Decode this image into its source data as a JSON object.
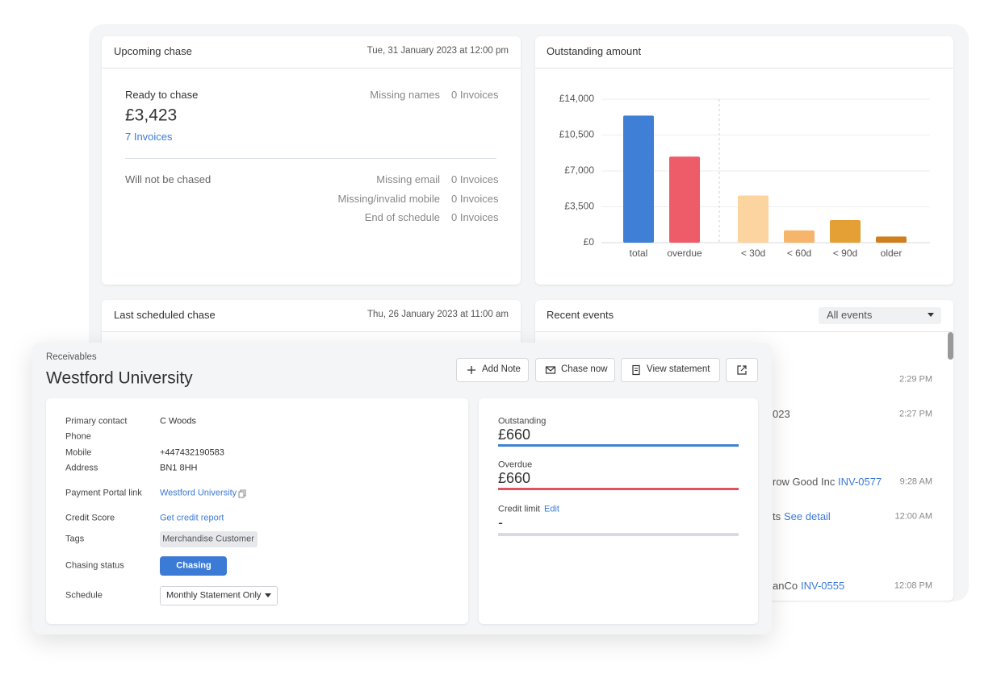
{
  "upcoming_chase": {
    "title": "Upcoming chase",
    "date": "Tue, 31 January 2023 at 12:00 pm",
    "ready_label": "Ready to chase",
    "ready_amount": "£3,423",
    "ready_invoices": "7 Invoices",
    "missing_names": {
      "label": "Missing names",
      "value": "0 Invoices"
    },
    "not_chased_label": "Will not be chased",
    "not_chased": [
      {
        "label": "Missing email",
        "value": "0 Invoices"
      },
      {
        "label": "Missing/invalid mobile",
        "value": "0 Invoices"
      },
      {
        "label": "End of schedule",
        "value": "0 Invoices"
      }
    ]
  },
  "chart_data": {
    "type": "bar",
    "title": "Outstanding amount",
    "categories": [
      "total",
      "overdue",
      "< 30d",
      "< 60d",
      "< 90d",
      "older"
    ],
    "values": [
      12400,
      8400,
      4600,
      1200,
      2200,
      600
    ],
    "colors": [
      "#3f80d6",
      "#ee5b69",
      "#fcd4a0",
      "#f7b56b",
      "#e4a034",
      "#d07f1e"
    ],
    "ylim": [
      0,
      14000
    ],
    "yticks": [
      {
        "value": 0,
        "label": "£0"
      },
      {
        "value": 3500,
        "label": "£3,500"
      },
      {
        "value": 7000,
        "label": "£7,000"
      },
      {
        "value": 10500,
        "label": "£10,500"
      },
      {
        "value": 14000,
        "label": "£14,000"
      }
    ],
    "grid": true
  },
  "last_scheduled_chase": {
    "title": "Last scheduled chase",
    "date": "Thu, 26 January 2023 at 11:00 am"
  },
  "recent_events": {
    "title": "Recent events",
    "filter": "All events",
    "events": [
      {
        "time": "2:29 PM"
      },
      {
        "text": "023",
        "time": "2:27 PM"
      },
      {
        "text": "row Good Inc",
        "link": "INV-0577",
        "time": "9:28 AM"
      },
      {
        "text": "ts",
        "link": "See detail",
        "time": "12:00 AM"
      },
      {
        "text": "anCo",
        "link": "INV-0555",
        "time": "12:08 PM"
      }
    ]
  },
  "receivables": {
    "breadcrumb": "Receivables",
    "name": "Westford University",
    "actions": [
      "Add Note",
      "Chase now",
      "View statement"
    ],
    "details": [
      {
        "label": "Primary contact",
        "value": "C Woods"
      },
      {
        "label": "Phone"
      },
      {
        "label": "Mobile",
        "value": "+447432190583"
      },
      {
        "label": "Address",
        "value": "BN1 8HH"
      },
      {
        "label": "Payment Portal link",
        "value": "Westford University"
      },
      {
        "label": "Credit Score",
        "value": "Get credit report"
      },
      {
        "label": "Tags",
        "value": "Merchandise Customer"
      },
      {
        "label": "Chasing status",
        "value": "Chasing"
      },
      {
        "label": "Schedule",
        "value": "Monthly Statement Only"
      }
    ],
    "summary": [
      {
        "label": "Outstanding",
        "value": "£660"
      },
      {
        "label": "Overdue",
        "value": "£660"
      },
      {
        "label": "Credit limit",
        "action": "Edit",
        "value": "-"
      }
    ]
  }
}
